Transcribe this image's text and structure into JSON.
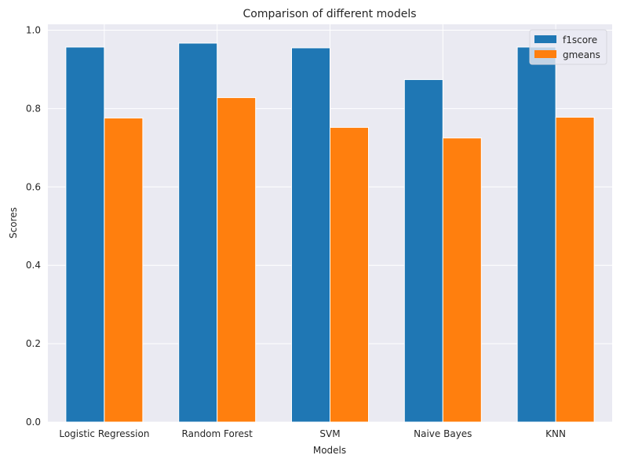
{
  "chart_data": {
    "type": "bar",
    "title": "Comparison of different models",
    "xlabel": "Models",
    "ylabel": "Scores",
    "categories": [
      "Logistic Regression",
      "Random Forest",
      "SVM",
      "Naive Bayes",
      "KNN"
    ],
    "series": [
      {
        "name": "f1score",
        "color": "#1f77b4",
        "values": [
          0.957,
          0.967,
          0.955,
          0.874,
          0.957
        ]
      },
      {
        "name": "gmeans",
        "color": "#ff7f0e",
        "values": [
          0.776,
          0.828,
          0.752,
          0.725,
          0.778
        ]
      }
    ],
    "ylim": [
      0,
      1.015
    ],
    "yticks": [
      "0.0",
      "0.2",
      "0.4",
      "0.6",
      "0.8",
      "1.0"
    ],
    "grid": true,
    "legend_position": "top-right"
  },
  "colors": {
    "plot_background": "#eaeaf2",
    "grid": "#ffffff",
    "text": "#262626"
  }
}
